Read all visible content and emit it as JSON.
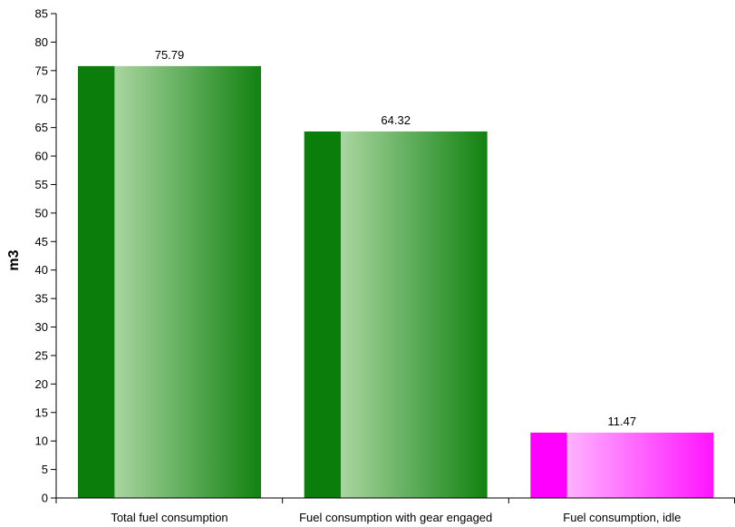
{
  "chart_data": {
    "type": "bar",
    "title": "",
    "xlabel": "",
    "ylabel": "m3",
    "ylim": [
      0,
      85
    ],
    "ytick_step": 5,
    "categories": [
      "Total fuel consumption",
      "Fuel consumption with gear engaged",
      "Fuel consumption, idle"
    ],
    "values": [
      75.79,
      64.32,
      11.47
    ],
    "value_labels": [
      "75.79",
      "64.32",
      "11.47"
    ],
    "bar_colors": [
      {
        "base": "#0a7d0a",
        "light": "#a9d6a0",
        "dark": "#118211"
      },
      {
        "base": "#0a7d0a",
        "light": "#a9d6a0",
        "dark": "#118211"
      },
      {
        "base": "#ff00ff",
        "light": "#ffb3ff",
        "dark": "#ff14ff"
      }
    ],
    "grid": false,
    "legend": "none"
  }
}
